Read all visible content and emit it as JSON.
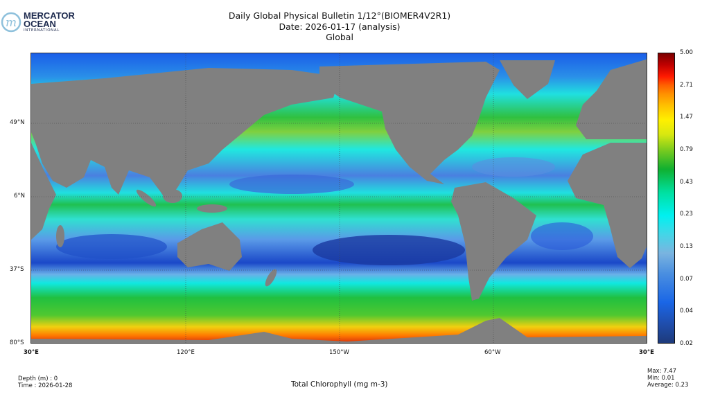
{
  "logo": {
    "line1": "MERCATOR",
    "line2": "OCEAN",
    "line3": "INTERNATIONAL"
  },
  "header": {
    "title": "Daily Global Physical Bulletin 1/12°(BIOMER4V2R1)",
    "date": "Date: 2026-01-17 (analysis)",
    "region": "Global"
  },
  "map": {
    "lat_labels": [
      "49°N",
      "6°N",
      "37°S",
      "80°S"
    ],
    "lon_labels": [
      "30°E",
      "120°E",
      "150°W",
      "60°W",
      "30°E"
    ],
    "colors": {
      "land": "#808080",
      "ice": "#d0d0d0"
    }
  },
  "colorbar": {
    "labels": [
      "5.00",
      "2.71",
      "1.47",
      "0.79",
      "0.43",
      "0.23",
      "0.13",
      "0.07",
      "0.04",
      "0.02"
    ],
    "scale": "log"
  },
  "footer": {
    "depth": "Depth (m) : 0",
    "time": "Time : 2026-01-28",
    "variable": "Total Chlorophyll (mg m-3)",
    "max": "Max:  7.47",
    "min": "Min:  0.01",
    "average": "Average:  0.23"
  }
}
